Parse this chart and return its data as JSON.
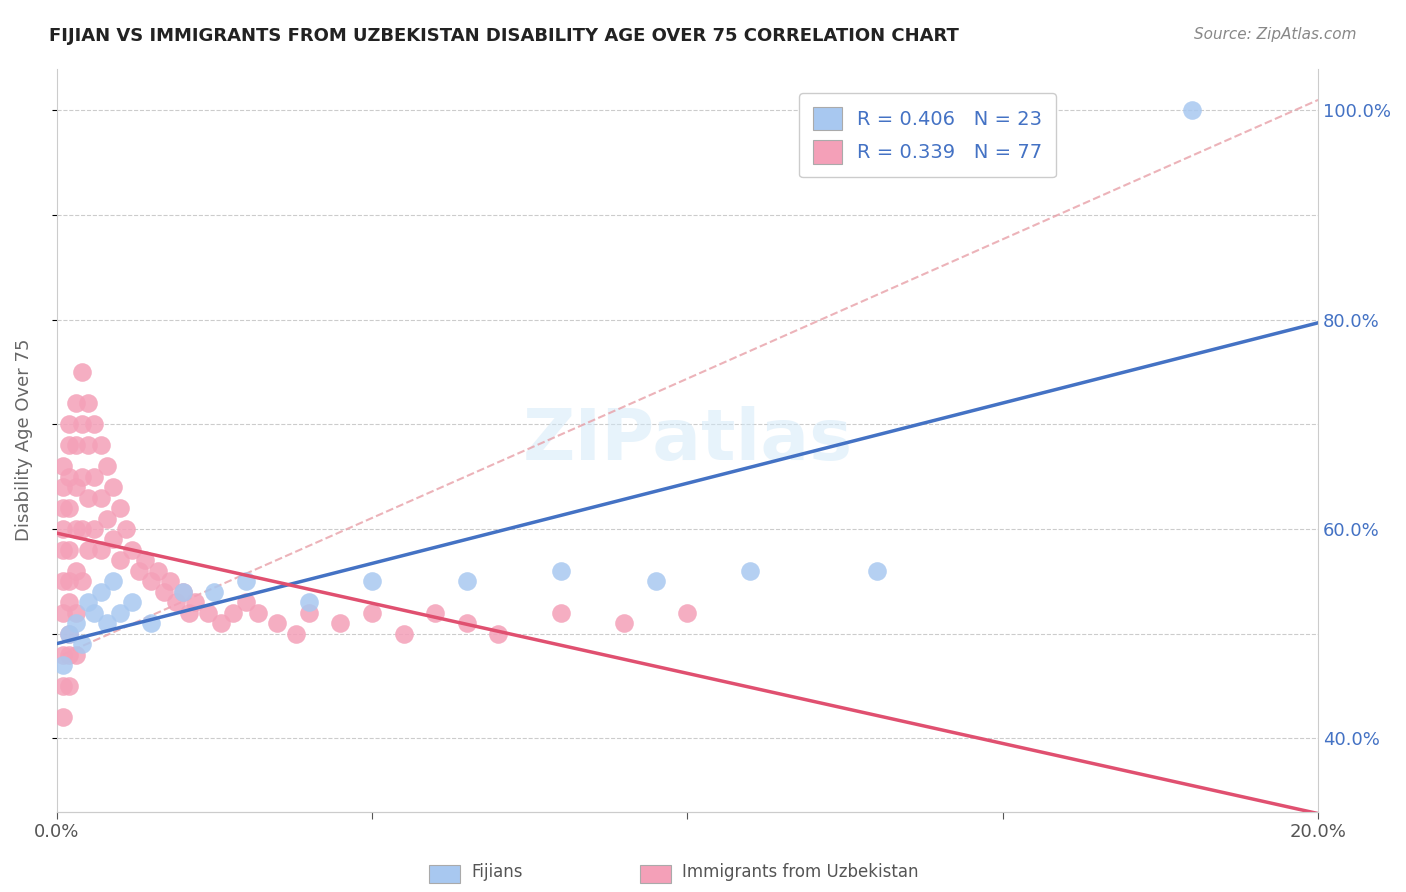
{
  "title": "FIJIAN VS IMMIGRANTS FROM UZBEKISTAN DISABILITY AGE OVER 75 CORRELATION CHART",
  "source": "Source: ZipAtlas.com",
  "ylabel": "Disability Age Over 75",
  "xmin": 0.0,
  "xmax": 0.2,
  "ymin": 0.33,
  "ymax": 1.04,
  "xticks": [
    0.0,
    0.05,
    0.1,
    0.15,
    0.2
  ],
  "xtick_labels": [
    "0.0%",
    "",
    "",
    "",
    "20.0%"
  ],
  "yticks": [
    0.4,
    0.5,
    0.6,
    0.7,
    0.8,
    0.9,
    1.0
  ],
  "ytick_right_labels": [
    "40.0%",
    "",
    "60.0%",
    "",
    "80.0%",
    "",
    "100.0%"
  ],
  "legend_R1": "R = 0.406",
  "legend_N1": "N = 23",
  "legend_R2": "R = 0.339",
  "legend_N2": "N = 77",
  "color_fijian": "#a8c8f0",
  "color_uzbek": "#f4a0b8",
  "color_line_fijian": "#4472c4",
  "color_line_uzbek": "#e05070",
  "color_ref_line": "#e8a0a8",
  "watermark": "ZIPatlas",
  "fijian_x": [
    0.001,
    0.002,
    0.003,
    0.004,
    0.005,
    0.006,
    0.007,
    0.008,
    0.009,
    0.01,
    0.012,
    0.015,
    0.02,
    0.025,
    0.03,
    0.04,
    0.05,
    0.065,
    0.08,
    0.095,
    0.11,
    0.13,
    0.18
  ],
  "fijian_y": [
    0.47,
    0.5,
    0.51,
    0.49,
    0.53,
    0.52,
    0.54,
    0.51,
    0.55,
    0.52,
    0.53,
    0.51,
    0.54,
    0.54,
    0.55,
    0.53,
    0.55,
    0.55,
    0.56,
    0.55,
    0.56,
    0.56,
    1.0
  ],
  "uzbek_x": [
    0.001,
    0.001,
    0.001,
    0.001,
    0.001,
    0.001,
    0.001,
    0.001,
    0.001,
    0.001,
    0.002,
    0.002,
    0.002,
    0.002,
    0.002,
    0.002,
    0.002,
    0.002,
    0.002,
    0.002,
    0.003,
    0.003,
    0.003,
    0.003,
    0.003,
    0.003,
    0.003,
    0.004,
    0.004,
    0.004,
    0.004,
    0.004,
    0.005,
    0.005,
    0.005,
    0.005,
    0.006,
    0.006,
    0.006,
    0.007,
    0.007,
    0.007,
    0.008,
    0.008,
    0.009,
    0.009,
    0.01,
    0.01,
    0.011,
    0.012,
    0.013,
    0.014,
    0.015,
    0.016,
    0.017,
    0.018,
    0.019,
    0.02,
    0.021,
    0.022,
    0.024,
    0.026,
    0.028,
    0.03,
    0.032,
    0.035,
    0.038,
    0.04,
    0.045,
    0.05,
    0.055,
    0.06,
    0.065,
    0.07,
    0.08,
    0.09,
    0.1
  ],
  "uzbek_y": [
    0.55,
    0.58,
    0.6,
    0.62,
    0.64,
    0.66,
    0.52,
    0.48,
    0.45,
    0.42,
    0.68,
    0.65,
    0.62,
    0.58,
    0.7,
    0.55,
    0.5,
    0.53,
    0.48,
    0.45,
    0.72,
    0.68,
    0.64,
    0.6,
    0.56,
    0.52,
    0.48,
    0.75,
    0.7,
    0.65,
    0.6,
    0.55,
    0.72,
    0.68,
    0.63,
    0.58,
    0.7,
    0.65,
    0.6,
    0.68,
    0.63,
    0.58,
    0.66,
    0.61,
    0.64,
    0.59,
    0.62,
    0.57,
    0.6,
    0.58,
    0.56,
    0.57,
    0.55,
    0.56,
    0.54,
    0.55,
    0.53,
    0.54,
    0.52,
    0.53,
    0.52,
    0.51,
    0.52,
    0.53,
    0.52,
    0.51,
    0.5,
    0.52,
    0.51,
    0.52,
    0.5,
    0.52,
    0.51,
    0.5,
    0.52,
    0.51,
    0.52
  ],
  "background_color": "#ffffff",
  "grid_color": "#cccccc"
}
